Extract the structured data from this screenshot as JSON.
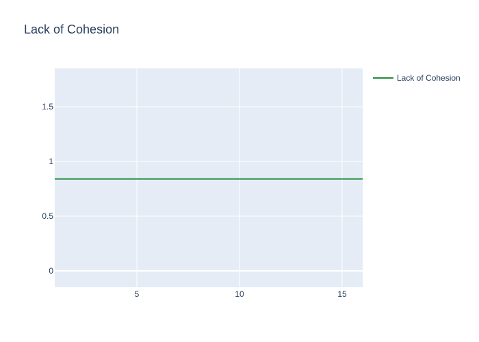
{
  "chart_data": {
    "type": "line",
    "title": "Lack of Cohesion",
    "xlabel": "",
    "ylabel": "",
    "xlim": [
      1,
      16
    ],
    "ylim": [
      -0.15,
      1.85
    ],
    "x_ticks": [
      5,
      10,
      15
    ],
    "y_ticks": [
      0,
      0.5,
      1,
      1.5
    ],
    "grid": true,
    "legend_position": "top-right",
    "series": [
      {
        "name": "Lack of Cohesion",
        "color": "#228b3b",
        "x": [
          1,
          16
        ],
        "y": [
          0.84,
          0.84
        ]
      }
    ]
  },
  "style": {
    "plot_background": "#e5ecf6",
    "grid_color": "#ffffff",
    "text_color": "#2a3f5f"
  }
}
